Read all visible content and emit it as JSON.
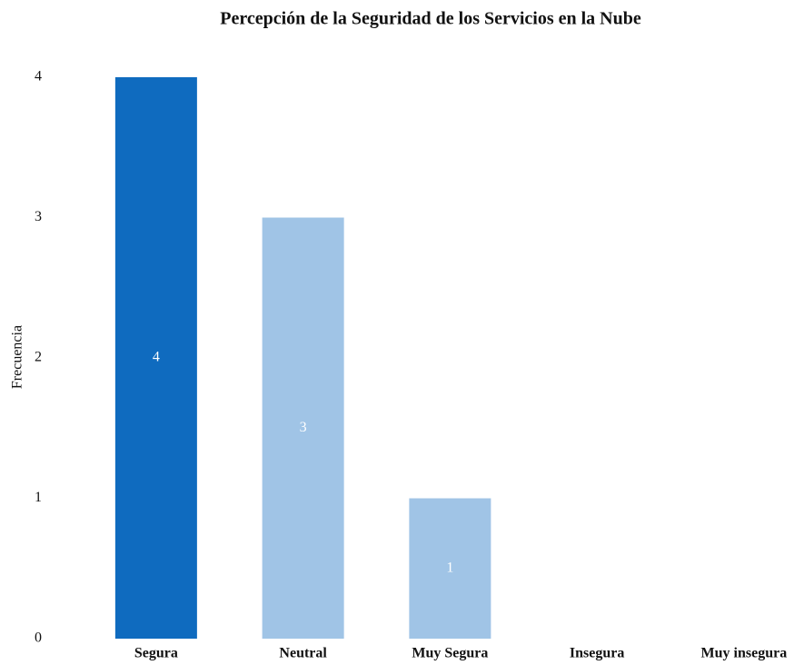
{
  "chart_data": {
    "type": "bar",
    "title": "Percepción de la Seguridad de los Servicios en la Nube",
    "y_label": "Frecuencia",
    "categories": [
      "Segura",
      "Neutral",
      "Muy Segura",
      "Insegura",
      "Muy insegura"
    ],
    "values": [
      4,
      3,
      1,
      0,
      0
    ],
    "colors": [
      "#0f6bbf",
      "#a0c4e6",
      "#a0c4e6",
      "#a0c4e6",
      "#a0c4e6"
    ],
    "ylim": [
      0,
      4
    ],
    "yticks": [
      0,
      1,
      2,
      3,
      4
    ],
    "grid": false
  }
}
